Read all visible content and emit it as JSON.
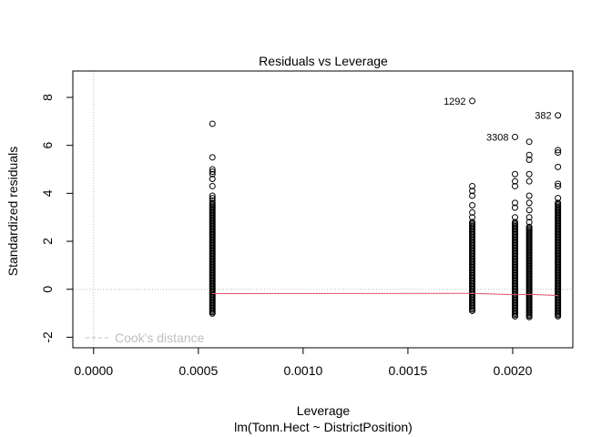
{
  "chart_data": {
    "type": "scatter",
    "title": "Residuals vs Leverage",
    "xlabel": "Leverage",
    "sublabel": "lm(Tonn.Hect ~ DistrictPosition)",
    "ylabel": "Standardized residuals",
    "xlim": [
      -9.9e-05,
      0.002287
    ],
    "ylim": [
      -2.44,
      9.1
    ],
    "x_ticks": [
      0.0,
      0.0005,
      0.001,
      0.0015,
      0.002
    ],
    "x_tick_labels": [
      "0.0000",
      "0.0005",
      "0.0010",
      "0.0015",
      "0.0020"
    ],
    "y_ticks": [
      -2,
      0,
      2,
      4,
      6,
      8
    ],
    "y_tick_labels": [
      "-2",
      "0",
      "2",
      "4",
      "6",
      "8"
    ],
    "legend": {
      "label": "Cook's distance",
      "position": "bottom-left"
    },
    "reference_lines": {
      "horizontal_y": 0,
      "vertical_x": 0
    },
    "clusters": [
      {
        "x": 0.000567,
        "band": [
          -1.05,
          3.6
        ],
        "points": [
          3.7,
          3.8,
          3.9,
          4.3,
          4.6,
          4.8,
          4.9,
          5.0,
          5.5,
          6.9
        ]
      },
      {
        "x": 0.001807,
        "band": [
          -0.95,
          2.8
        ],
        "points": [
          3.0,
          3.2,
          3.5,
          3.9,
          4.1,
          4.3,
          7.85
        ]
      },
      {
        "x": 0.002011,
        "band": [
          -1.15,
          2.8
        ],
        "points": [
          3.0,
          3.4,
          3.6,
          4.3,
          4.5,
          4.8,
          6.35
        ]
      },
      {
        "x": 0.002079,
        "band": [
          -1.2,
          2.6
        ],
        "points": [
          2.8,
          3.0,
          3.3,
          3.6,
          3.9,
          4.5,
          4.8,
          5.4,
          5.6,
          6.15
        ]
      },
      {
        "x": 0.002216,
        "band": [
          -1.15,
          3.6
        ],
        "points": [
          3.8,
          4.3,
          4.4,
          5.1,
          5.7,
          5.8,
          7.25
        ]
      }
    ],
    "smoother": {
      "x": [
        0.000567,
        0.001807,
        0.002011,
        0.002079,
        0.002216
      ],
      "y": [
        -0.18,
        -0.17,
        -0.23,
        -0.21,
        -0.26
      ]
    },
    "labeled_points": [
      {
        "label": "1292",
        "x": 0.001807,
        "y": 7.85
      },
      {
        "label": "3308",
        "x": 0.002011,
        "y": 6.35
      },
      {
        "label": "382",
        "x": 0.002216,
        "y": 7.25
      }
    ],
    "colors": {
      "points": "#000000",
      "smoother": "#df536b",
      "reference": "#bebebe"
    }
  }
}
